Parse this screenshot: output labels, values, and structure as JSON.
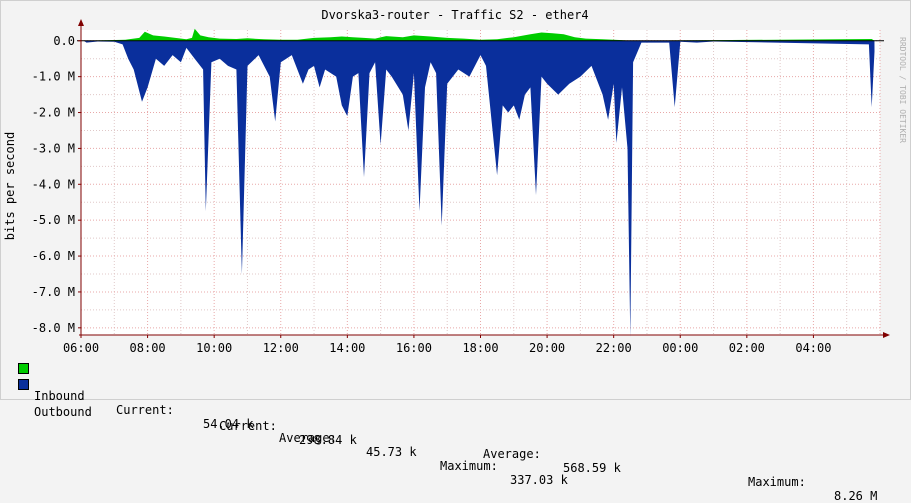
{
  "chart_data": {
    "type": "area",
    "title": "Dvorska3-router - Traffic S2 - ether4",
    "ylabel": "bits per second",
    "watermark": "RRDTOOL / TOBI OETIKER",
    "ylim": [
      -8200000,
      300000
    ],
    "y_ticks": [
      {
        "value": 0,
        "label": "0.0"
      },
      {
        "value": -1000000,
        "label": "-1.0 M"
      },
      {
        "value": -2000000,
        "label": "-2.0 M"
      },
      {
        "value": -3000000,
        "label": "-3.0 M"
      },
      {
        "value": -4000000,
        "label": "-4.0 M"
      },
      {
        "value": -5000000,
        "label": "-5.0 M"
      },
      {
        "value": -6000000,
        "label": "-6.0 M"
      },
      {
        "value": -7000000,
        "label": "-7.0 M"
      },
      {
        "value": -8000000,
        "label": "-8.0 M"
      }
    ],
    "x_ticks": [
      "06:00",
      "08:00",
      "10:00",
      "12:00",
      "14:00",
      "16:00",
      "18:00",
      "20:00",
      "22:00",
      "00:00",
      "02:00",
      "04:00"
    ],
    "grid": true,
    "colors": {
      "inbound": "#00cc00",
      "outbound": "#0a2f9c",
      "grid_minor": "#e0c8c8",
      "grid_major": "#e8a8a8",
      "axis": "#800000",
      "plot_bg": "#ffffff"
    },
    "series": [
      {
        "name": "Inbound",
        "note": "positive values",
        "points": [
          [
            "06:05",
            0
          ],
          [
            "07:20",
            30000
          ],
          [
            "07:45",
            80000
          ],
          [
            "07:55",
            250000
          ],
          [
            "08:10",
            150000
          ],
          [
            "08:30",
            120000
          ],
          [
            "08:50",
            80000
          ],
          [
            "09:10",
            40000
          ],
          [
            "09:20",
            80000
          ],
          [
            "09:25",
            337030
          ],
          [
            "09:35",
            150000
          ],
          [
            "09:50",
            100000
          ],
          [
            "10:10",
            60000
          ],
          [
            "10:40",
            50000
          ],
          [
            "11:00",
            70000
          ],
          [
            "11:30",
            40000
          ],
          [
            "12:00",
            30000
          ],
          [
            "12:30",
            30000
          ],
          [
            "13:00",
            80000
          ],
          [
            "13:30",
            100000
          ],
          [
            "13:50",
            120000
          ],
          [
            "14:10",
            100000
          ],
          [
            "14:30",
            80000
          ],
          [
            "14:50",
            60000
          ],
          [
            "15:10",
            130000
          ],
          [
            "15:40",
            100000
          ],
          [
            "16:00",
            150000
          ],
          [
            "16:30",
            120000
          ],
          [
            "17:00",
            80000
          ],
          [
            "17:30",
            60000
          ],
          [
            "18:00",
            30000
          ],
          [
            "18:30",
            40000
          ],
          [
            "19:00",
            100000
          ],
          [
            "19:30",
            180000
          ],
          [
            "19:50",
            230000
          ],
          [
            "20:10",
            210000
          ],
          [
            "20:30",
            180000
          ],
          [
            "20:50",
            100000
          ],
          [
            "21:10",
            60000
          ],
          [
            "21:40",
            40000
          ],
          [
            "22:10",
            20000
          ],
          [
            "22:30",
            0
          ],
          [
            "05:45",
            50000
          ],
          [
            "05:50",
            0
          ]
        ]
      },
      {
        "name": "Outbound",
        "note": "plotted as negative values",
        "points": [
          [
            "06:05",
            0
          ],
          [
            "06:10",
            -50000
          ],
          [
            "06:30",
            -20000
          ],
          [
            "07:00",
            -30000
          ],
          [
            "07:15",
            -100000
          ],
          [
            "07:25",
            -500000
          ],
          [
            "07:35",
            -800000
          ],
          [
            "07:50",
            -1700000
          ],
          [
            "08:00",
            -1300000
          ],
          [
            "08:15",
            -500000
          ],
          [
            "08:30",
            -700000
          ],
          [
            "08:45",
            -400000
          ],
          [
            "09:00",
            -600000
          ],
          [
            "09:10",
            -200000
          ],
          [
            "09:25",
            -500000
          ],
          [
            "09:40",
            -800000
          ],
          [
            "09:45",
            -4750000
          ],
          [
            "09:55",
            -600000
          ],
          [
            "10:10",
            -500000
          ],
          [
            "10:25",
            -700000
          ],
          [
            "10:40",
            -800000
          ],
          [
            "10:50",
            -6500000
          ],
          [
            "11:00",
            -700000
          ],
          [
            "11:20",
            -400000
          ],
          [
            "11:40",
            -1000000
          ],
          [
            "11:50",
            -2250000
          ],
          [
            "12:00",
            -600000
          ],
          [
            "12:20",
            -400000
          ],
          [
            "12:40",
            -1200000
          ],
          [
            "12:50",
            -800000
          ],
          [
            "13:00",
            -700000
          ],
          [
            "13:10",
            -1300000
          ],
          [
            "13:20",
            -800000
          ],
          [
            "13:40",
            -1000000
          ],
          [
            "13:50",
            -1800000
          ],
          [
            "14:00",
            -2100000
          ],
          [
            "14:10",
            -1000000
          ],
          [
            "14:20",
            -900000
          ],
          [
            "14:30",
            -3800000
          ],
          [
            "14:40",
            -900000
          ],
          [
            "14:50",
            -600000
          ],
          [
            "15:00",
            -2900000
          ],
          [
            "15:10",
            -800000
          ],
          [
            "15:20",
            -1000000
          ],
          [
            "15:40",
            -1500000
          ],
          [
            "15:50",
            -2500000
          ],
          [
            "16:00",
            -900000
          ],
          [
            "16:10",
            -4750000
          ],
          [
            "16:20",
            -1300000
          ],
          [
            "16:30",
            -600000
          ],
          [
            "16:40",
            -900000
          ],
          [
            "16:50",
            -5150000
          ],
          [
            "17:00",
            -1200000
          ],
          [
            "17:20",
            -800000
          ],
          [
            "17:40",
            -1000000
          ],
          [
            "18:00",
            -400000
          ],
          [
            "18:10",
            -700000
          ],
          [
            "18:30",
            -3750000
          ],
          [
            "18:40",
            -1800000
          ],
          [
            "18:50",
            -2000000
          ],
          [
            "19:00",
            -1800000
          ],
          [
            "19:10",
            -2200000
          ],
          [
            "19:20",
            -1500000
          ],
          [
            "19:30",
            -1300000
          ],
          [
            "19:40",
            -4300000
          ],
          [
            "19:50",
            -1000000
          ],
          [
            "20:00",
            -1200000
          ],
          [
            "20:20",
            -1500000
          ],
          [
            "20:40",
            -1200000
          ],
          [
            "21:00",
            -1000000
          ],
          [
            "21:20",
            -700000
          ],
          [
            "21:40",
            -1500000
          ],
          [
            "21:50",
            -2200000
          ],
          [
            "22:00",
            -1200000
          ],
          [
            "22:05",
            -2850000
          ],
          [
            "22:15",
            -1300000
          ],
          [
            "22:25",
            -3000000
          ],
          [
            "22:30",
            -8260000
          ],
          [
            "22:35",
            -600000
          ],
          [
            "22:50",
            -50000
          ],
          [
            "23:40",
            -50000
          ],
          [
            "23:50",
            -1850000
          ],
          [
            "00:00",
            -30000
          ],
          [
            "00:30",
            -50000
          ],
          [
            "01:00",
            -20000
          ],
          [
            "05:40",
            -100000
          ],
          [
            "05:45",
            -1850000
          ],
          [
            "05:50",
            -300000
          ]
        ]
      }
    ],
    "legend": [
      {
        "name": "Inbound",
        "current_label": "Current:",
        "current": "54.04 k",
        "average_label": "Average:",
        "average": "45.73 k",
        "maximum_label": "Maximum:",
        "maximum": "337.03 k"
      },
      {
        "name": "Outbound",
        "current_label": "Current:",
        "current": "298.84 k",
        "average_label": "Average:",
        "average": "568.59 k",
        "maximum_label": "Maximum:",
        "maximum": "8.26 M"
      }
    ]
  }
}
